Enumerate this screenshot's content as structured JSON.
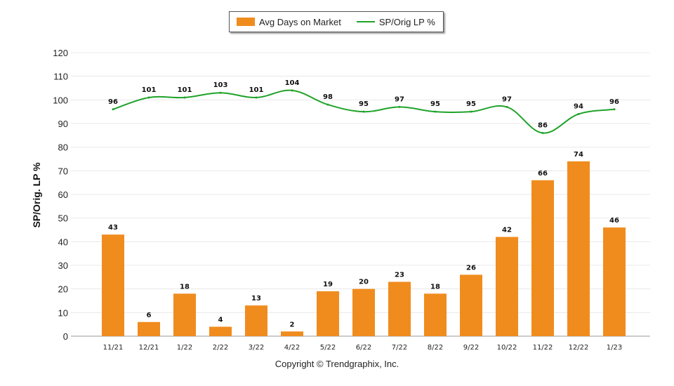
{
  "legend": {
    "bar_label": "Avg Days on Market",
    "line_label": "SP/Orig LP %"
  },
  "footer": {
    "copyright": "Copyright © Trendgraphix, Inc."
  },
  "colors": {
    "bar": "#F08C1E",
    "line": "#1FA32A",
    "grid": "#e8e8e8",
    "axis": "#999999"
  },
  "chart_data": {
    "type": "bar",
    "title": "",
    "xlabel": "",
    "ylabel": "SP/Orig. LP %",
    "ylim": [
      0,
      120
    ],
    "yticks": [
      0,
      10,
      20,
      30,
      40,
      50,
      60,
      70,
      80,
      90,
      100,
      110,
      120
    ],
    "grid": true,
    "legend_position": "top-center",
    "categories": [
      "11/21",
      "12/21",
      "1/22",
      "2/22",
      "3/22",
      "4/22",
      "5/22",
      "6/22",
      "7/22",
      "8/22",
      "9/22",
      "10/22",
      "11/22",
      "12/22",
      "1/23"
    ],
    "series": [
      {
        "name": "Avg Days on Market",
        "type": "bar",
        "values": [
          43,
          6,
          18,
          4,
          13,
          2,
          19,
          20,
          23,
          18,
          26,
          42,
          66,
          74,
          46
        ]
      },
      {
        "name": "SP/Orig LP %",
        "type": "line",
        "values": [
          96,
          101,
          101,
          103,
          101,
          104,
          98,
          95,
          97,
          95,
          95,
          97,
          86,
          94,
          96
        ]
      }
    ]
  }
}
